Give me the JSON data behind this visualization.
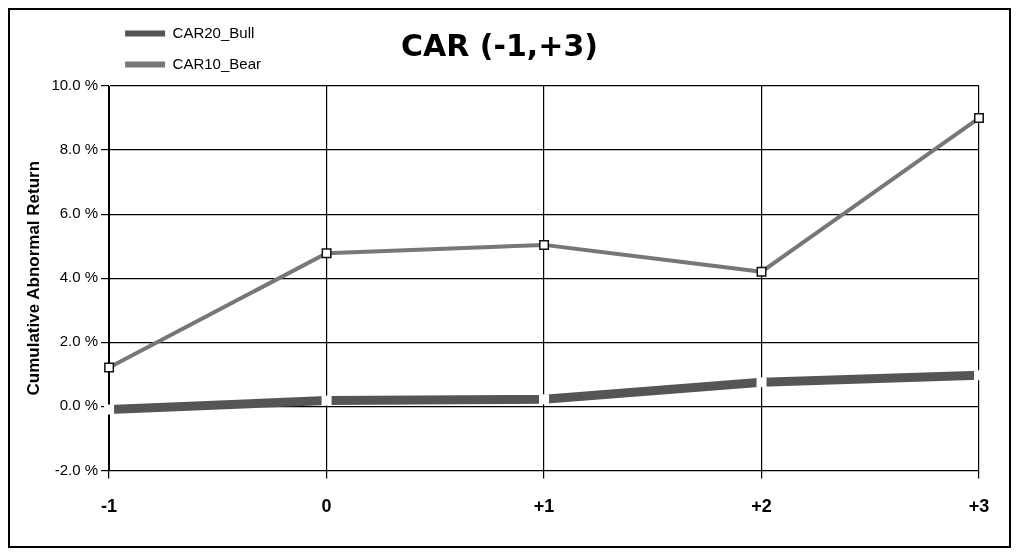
{
  "chart_data": {
    "type": "line",
    "title": "CAR (-1,+3)",
    "ylabel": "Cumulative Abnormal Return",
    "categories": [
      "-1",
      "0",
      "+1",
      "+2",
      "+3"
    ],
    "series": [
      {
        "name": "CAR20_Bull",
        "color": "#555555",
        "values": [
          -0.1,
          0.18,
          0.22,
          0.75,
          0.97
        ]
      },
      {
        "name": "CAR10_Bear",
        "color": "#777777",
        "values": [
          1.21,
          4.78,
          5.04,
          4.2,
          9.0
        ]
      }
    ],
    "ylim": [
      -2,
      10
    ],
    "yticks": [
      {
        "value": -2,
        "label": "-2.0 %"
      },
      {
        "value": 0,
        "label": "0.0 %"
      },
      {
        "value": 2,
        "label": "2.0 %"
      },
      {
        "value": 4,
        "label": "4.0 %"
      },
      {
        "value": 6,
        "label": "6.0 %"
      },
      {
        "value": 8,
        "label": "8.0 %"
      },
      {
        "value": 10,
        "label": "10.0 %"
      }
    ],
    "grid": true,
    "legend": "top left",
    "marker": "square",
    "line_style": "solid"
  }
}
